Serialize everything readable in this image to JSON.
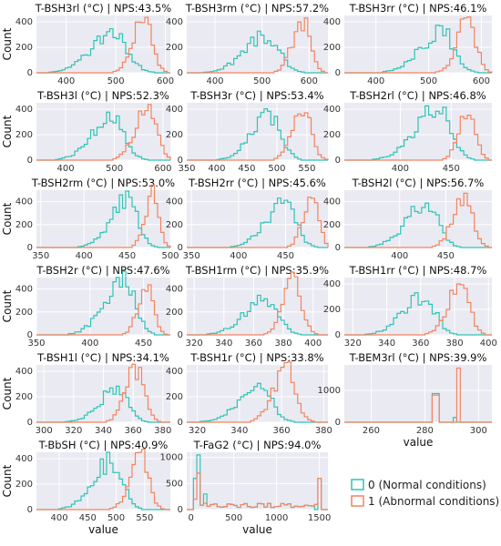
{
  "figure": {
    "legend": {
      "entries": [
        {
          "label": "0 (Normal conditions)",
          "color": "#2ec4b6"
        },
        {
          "label": "1 (Abnormal conditions)",
          "color": "#f4845f"
        }
      ]
    },
    "ylabel": "Count",
    "xlabel": "value"
  },
  "colors": {
    "normal": "#2ec4b6",
    "abnormal": "#f4845f",
    "grid": "#ffffff",
    "panel_bg": "#eaeaf2"
  },
  "chart_data": [
    {
      "type": "histogram",
      "title": "T-BSH3rl (°C) | NPS:43.5%",
      "xlim": [
        340,
        610
      ],
      "ylim": [
        0,
        450
      ],
      "xticks": [
        400,
        500,
        600
      ],
      "yticks": [
        0,
        200,
        400
      ],
      "ylabel": "Count",
      "series": [
        {
          "name": "0 (Normal conditions)",
          "center": 495,
          "spread": 45,
          "peak": 300,
          "left_skew": 1.6
        },
        {
          "name": "1 (Abnormal conditions)",
          "center": 558,
          "spread": 22,
          "peak": 420,
          "left_skew": 1.4
        }
      ]
    },
    {
      "type": "histogram",
      "title": "T-BSH3rm (°C) | NPS:57.2%",
      "xlim": [
        340,
        640
      ],
      "ylim": [
        0,
        450
      ],
      "xticks": [
        400,
        500,
        600
      ],
      "yticks": [
        0,
        200,
        400
      ],
      "series": [
        {
          "name": "0 (Normal conditions)",
          "center": 508,
          "spread": 45,
          "peak": 290,
          "left_skew": 1.6
        },
        {
          "name": "1 (Abnormal conditions)",
          "center": 588,
          "spread": 22,
          "peak": 420,
          "left_skew": 1.4
        }
      ]
    },
    {
      "type": "histogram",
      "title": "T-BSH3rr (°C) | NPS:46.1%",
      "xlim": [
        340,
        620
      ],
      "ylim": [
        0,
        450
      ],
      "xticks": [
        400,
        500,
        600
      ],
      "yticks": [
        0,
        200,
        400
      ],
      "series": [
        {
          "name": "0 (Normal conditions)",
          "center": 525,
          "spread": 40,
          "peak": 320,
          "left_skew": 1.7
        },
        {
          "name": "1 (Abnormal conditions)",
          "center": 575,
          "spread": 20,
          "peak": 430,
          "left_skew": 1.4
        }
      ]
    },
    {
      "type": "histogram",
      "title": "T-BSH3l (°C) | NPS:52.3%",
      "xlim": [
        340,
        615
      ],
      "ylim": [
        0,
        450
      ],
      "xticks": [
        400,
        500,
        600
      ],
      "yticks": [
        0,
        200,
        400
      ],
      "ylabel": "Count",
      "series": [
        {
          "name": "0 (Normal conditions)",
          "center": 495,
          "spread": 40,
          "peak": 340,
          "left_skew": 1.6
        },
        {
          "name": "1 (Abnormal conditions)",
          "center": 568,
          "spread": 25,
          "peak": 430,
          "left_skew": 1.4
        }
      ]
    },
    {
      "type": "histogram",
      "title": "T-BSH3r (°C) | NPS:53.4%",
      "xlim": [
        350,
        585
      ],
      "ylim": [
        0,
        450
      ],
      "xticks": [
        350,
        400,
        450,
        500,
        550
      ],
      "yticks": [
        0,
        200,
        400
      ],
      "series": [
        {
          "name": "0 (Normal conditions)",
          "center": 488,
          "spread": 30,
          "peak": 340,
          "left_skew": 1.6
        },
        {
          "name": "1 (Abnormal conditions)",
          "center": 545,
          "spread": 18,
          "peak": 420,
          "left_skew": 1.4
        }
      ]
    },
    {
      "type": "histogram",
      "title": "T-BSH2rl (°C) | NPS:46.8%",
      "xlim": [
        345,
        490
      ],
      "ylim": [
        0,
        450
      ],
      "xticks": [
        400,
        450
      ],
      "yticks": [
        0,
        200,
        400
      ],
      "series": [
        {
          "name": "0 (Normal conditions)",
          "center": 437,
          "spread": 22,
          "peak": 420,
          "left_skew": 1.8
        },
        {
          "name": "1 (Abnormal conditions)",
          "center": 467,
          "spread": 9,
          "peak": 400,
          "left_skew": 1.3
        }
      ]
    },
    {
      "type": "histogram",
      "title": "T-BSH2rm (°C) | NPS:53.0%",
      "xlim": [
        345,
        500
      ],
      "ylim": [
        0,
        500
      ],
      "xticks": [
        350,
        400,
        450,
        500
      ],
      "yticks": [
        0,
        200,
        400
      ],
      "ylabel": "Count",
      "series": [
        {
          "name": "0 (Normal conditions)",
          "center": 452,
          "spread": 20,
          "peak": 420,
          "left_skew": 1.8
        },
        {
          "name": "1 (Abnormal conditions)",
          "center": 480,
          "spread": 9,
          "peak": 470,
          "left_skew": 1.3
        }
      ]
    },
    {
      "type": "histogram",
      "title": "T-BSH2rr (°C) | NPS:45.6%",
      "xlim": [
        345,
        495
      ],
      "ylim": [
        0,
        500
      ],
      "xticks": [
        350,
        400,
        450
      ],
      "yticks": [
        0,
        200,
        400
      ],
      "series": [
        {
          "name": "0 (Normal conditions)",
          "center": 450,
          "spread": 20,
          "peak": 400,
          "left_skew": 1.8
        },
        {
          "name": "1 (Abnormal conditions)",
          "center": 478,
          "spread": 9,
          "peak": 460,
          "left_skew": 1.3
        }
      ]
    },
    {
      "type": "histogram",
      "title": "T-BSH2l (°C) | NPS:56.7%",
      "xlim": [
        340,
        500
      ],
      "ylim": [
        0,
        500
      ],
      "xticks": [
        400,
        450
      ],
      "yticks": [
        0,
        200,
        400
      ],
      "series": [
        {
          "name": "0 (Normal conditions)",
          "center": 430,
          "spread": 22,
          "peak": 390,
          "left_skew": 1.8
        },
        {
          "name": "1 (Abnormal conditions)",
          "center": 470,
          "spread": 12,
          "peak": 450,
          "left_skew": 1.3
        }
      ]
    },
    {
      "type": "histogram",
      "title": "T-BSH2r (°C) | NPS:47.6%",
      "xlim": [
        350,
        475
      ],
      "ylim": [
        0,
        500
      ],
      "xticks": [
        350,
        400,
        450
      ],
      "yticks": [
        0,
        200,
        400
      ],
      "ylabel": "Count",
      "series": [
        {
          "name": "0 (Normal conditions)",
          "center": 432,
          "spread": 18,
          "peak": 480,
          "left_skew": 1.8
        },
        {
          "name": "1 (Abnormal conditions)",
          "center": 453,
          "spread": 8,
          "peak": 400,
          "left_skew": 1.3
        }
      ]
    },
    {
      "type": "histogram",
      "title": "T-BSH1rm (°C) | NPS:35.9%",
      "xlim": [
        315,
        410
      ],
      "ylim": [
        0,
        500
      ],
      "xticks": [
        320,
        340,
        360,
        380,
        400
      ],
      "yticks": [
        0,
        200,
        400
      ],
      "series": [
        {
          "name": "0 (Normal conditions)",
          "center": 368,
          "spread": 14,
          "peak": 300,
          "left_skew": 1.7
        },
        {
          "name": "1 (Abnormal conditions)",
          "center": 387,
          "spread": 7,
          "peak": 460,
          "left_skew": 1.3
        }
      ]
    },
    {
      "type": "histogram",
      "title": "T-BSH1rr (°C) | NPS:48.7%",
      "xlim": [
        315,
        402
      ],
      "ylim": [
        0,
        450
      ],
      "xticks": [
        320,
        340,
        360,
        380,
        400
      ],
      "yticks": [
        0,
        200,
        400
      ],
      "series": [
        {
          "name": "0 (Normal conditions)",
          "center": 362,
          "spread": 12,
          "peak": 300,
          "left_skew": 1.8
        },
        {
          "name": "1 (Abnormal conditions)",
          "center": 383,
          "spread": 7,
          "peak": 400,
          "left_skew": 1.3
        }
      ]
    },
    {
      "type": "histogram",
      "title": "T-BSH1l (°C) | NPS:34.1%",
      "xlim": [
        295,
        385
      ],
      "ylim": [
        0,
        450
      ],
      "xticks": [
        300,
        320,
        340,
        360,
        380
      ],
      "yticks": [
        0,
        200,
        400
      ],
      "ylabel": "Count",
      "series": [
        {
          "name": "0 (Normal conditions)",
          "center": 350,
          "spread": 12,
          "peak": 270,
          "left_skew": 1.8
        },
        {
          "name": "1 (Abnormal conditions)",
          "center": 362,
          "spread": 7,
          "peak": 410,
          "left_skew": 1.3
        }
      ]
    },
    {
      "type": "histogram",
      "title": "T-BSH1r (°C) | NPS:33.8%",
      "xlim": [
        315,
        382
      ],
      "ylim": [
        0,
        450
      ],
      "xticks": [
        320,
        340,
        360,
        380
      ],
      "yticks": [
        0,
        200,
        400
      ],
      "series": [
        {
          "name": "0 (Normal conditions)",
          "center": 350,
          "spread": 10,
          "peak": 270,
          "left_skew": 1.8
        },
        {
          "name": "1 (Abnormal conditions)",
          "center": 362,
          "spread": 6,
          "peak": 420,
          "left_skew": 1.3
        }
      ]
    },
    {
      "type": "histogram",
      "title": "T-BEM3rl (°C) | NPS:39.9%",
      "xlim": [
        250,
        305
      ],
      "ylim": [
        0,
        1800
      ],
      "xticks": [
        260,
        280,
        300
      ],
      "yticks": [
        0,
        1000
      ],
      "xlabel": "value",
      "series": [
        {
          "name": "0 (Normal conditions)",
          "spikes": [
            [
              283,
              700
            ],
            [
              284,
              900
            ],
            [
              285,
              400
            ],
            [
              291,
              150
            ]
          ]
        },
        {
          "name": "1 (Abnormal conditions)",
          "spikes": [
            [
              284,
              850
            ],
            [
              285,
              300
            ],
            [
              292,
              1700
            ],
            [
              293,
              100
            ]
          ]
        }
      ]
    },
    {
      "type": "histogram",
      "title": "T-BbSH (°C) | NPS:40.9%",
      "xlim": [
        360,
        595
      ],
      "ylim": [
        0,
        450
      ],
      "xticks": [
        400,
        450,
        500,
        550
      ],
      "yticks": [
        0,
        200,
        400
      ],
      "ylabel": "Count",
      "xlabel": "value",
      "series": [
        {
          "name": "0 (Normal conditions)",
          "center": 492,
          "spread": 32,
          "peak": 380,
          "left_skew": 1.7
        },
        {
          "name": "1 (Abnormal conditions)",
          "center": 542,
          "spread": 18,
          "peak": 430,
          "left_skew": 1.3
        }
      ]
    },
    {
      "type": "histogram",
      "title": "T-FaG2 (°C) | NPS:94.0%",
      "xlim": [
        -50,
        1600
      ],
      "ylim": [
        0,
        1100
      ],
      "xticks": [
        0,
        500,
        1000,
        1500
      ],
      "yticks": [
        0,
        500,
        1000
      ],
      "xlabel": "value",
      "series": [
        {
          "name": "0 (Normal conditions)",
          "spikes": [
            [
              50,
              600
            ],
            [
              100,
              1050
            ],
            [
              150,
              300
            ],
            [
              1500,
              600
            ]
          ]
        },
        {
          "name": "1 (Abnormal conditions)",
          "spikes": [
            [
              50,
              200
            ],
            [
              100,
              700
            ],
            [
              150,
              120
            ],
            [
              1450,
              100
            ],
            [
              1500,
              600
            ]
          ]
        }
      ],
      "floor": 100
    }
  ]
}
